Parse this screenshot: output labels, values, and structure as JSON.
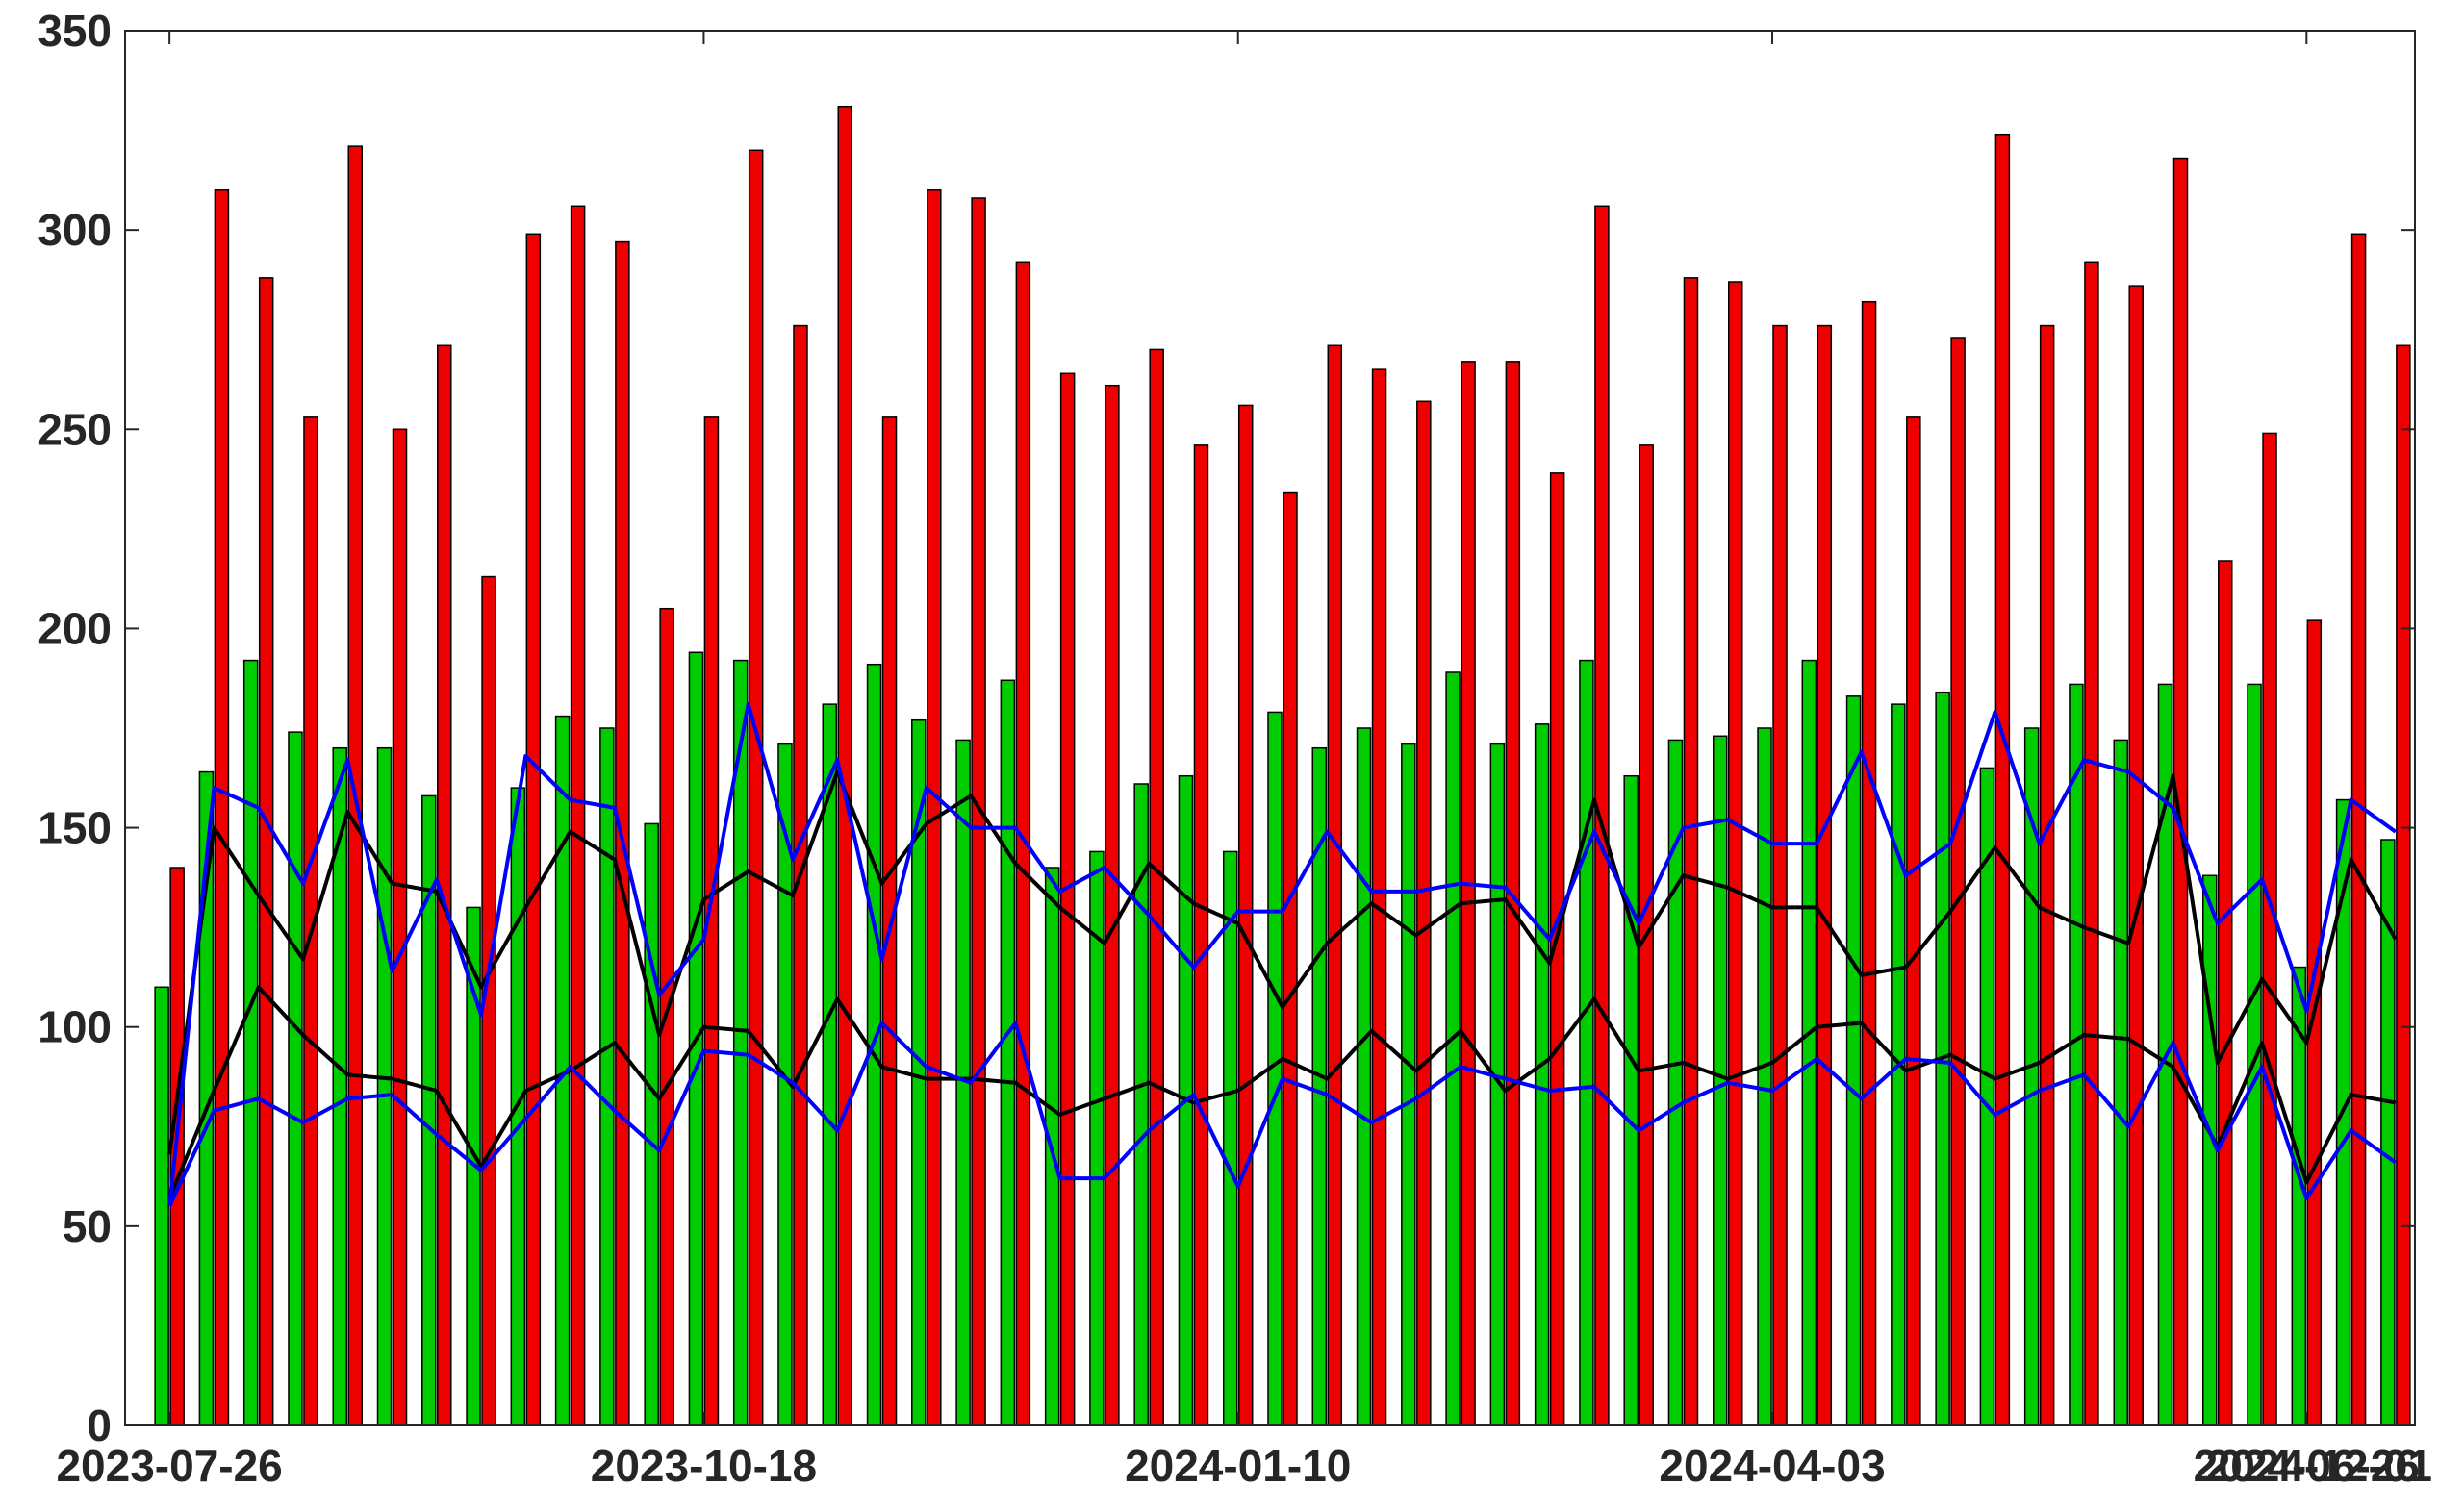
{
  "chart_data": {
    "type": "bar",
    "title": "",
    "xlabel": "",
    "ylabel": "",
    "ylim": [
      0,
      350
    ],
    "yticks": [
      0,
      50,
      100,
      150,
      200,
      250,
      300,
      350
    ],
    "xtick_labels": [
      "2023-07-26",
      "2023-10-18",
      "2024-01-10",
      "2024-04-03",
      "2024-06-26",
      "2024-09-18",
      "2024-12-01"
    ],
    "xtick_index": [
      0,
      12,
      24,
      36,
      48,
      60,
      71
    ],
    "grid": false,
    "colors": {
      "green": "#00cc00",
      "red": "#ee0000",
      "black": "#000000",
      "blue": "#0000ff"
    },
    "bar_series": [
      {
        "color": "green",
        "values": [
          110,
          164,
          192,
          174,
          170,
          170,
          158,
          130,
          160,
          178,
          175,
          151,
          194,
          192,
          171,
          181,
          191,
          177,
          172,
          187,
          140,
          144,
          161,
          163,
          144,
          179,
          170,
          175,
          171,
          189,
          171,
          176,
          192,
          163,
          172,
          173,
          175,
          192,
          183,
          181,
          184,
          165,
          175,
          186,
          172,
          186,
          138,
          186,
          115,
          157,
          147
        ]
      },
      {
        "color": "red",
        "values": [
          140,
          310,
          288,
          253,
          321,
          250,
          271,
          213,
          299,
          306,
          297,
          205,
          253,
          320,
          276,
          331,
          253,
          310,
          308,
          292,
          264,
          261,
          270,
          246,
          256,
          234,
          271,
          265,
          257,
          267,
          267,
          239,
          306,
          246,
          288,
          287,
          276,
          276,
          282,
          253,
          273,
          324,
          276,
          292,
          286,
          318,
          217,
          249,
          202,
          299,
          271
        ]
      }
    ],
    "line_series": [
      {
        "color": "black",
        "values": [
          68,
          150,
          133,
          117,
          154,
          136,
          134,
          110,
          130,
          149,
          142,
          98,
          132,
          139,
          133,
          164,
          136,
          151,
          158,
          141,
          130,
          121,
          141,
          131,
          126,
          105,
          121,
          131,
          123,
          131,
          132,
          116,
          157,
          120,
          138,
          135,
          130,
          130,
          113,
          115,
          129,
          145,
          130,
          125,
          121,
          163,
          91,
          112,
          96,
          142,
          122
        ]
      },
      {
        "color": "black",
        "values": [
          57,
          84,
          110,
          98,
          88,
          87,
          84,
          65,
          84,
          89,
          96,
          82,
          100,
          99,
          85,
          107,
          90,
          87,
          87,
          86,
          78,
          82,
          86,
          81,
          84,
          92,
          87,
          99,
          89,
          99,
          84,
          92,
          107,
          89,
          91,
          87,
          91,
          100,
          101,
          89,
          93,
          87,
          91,
          98,
          97,
          90,
          70,
          96,
          61,
          83,
          81
        ]
      },
      {
        "color": "blue",
        "values": [
          55,
          160,
          155,
          136,
          167,
          114,
          137,
          103,
          168,
          157,
          155,
          108,
          122,
          181,
          142,
          167,
          117,
          160,
          150,
          150,
          134,
          140,
          128,
          115,
          129,
          129,
          149,
          134,
          134,
          136,
          135,
          122,
          149,
          126,
          150,
          152,
          146,
          146,
          169,
          138,
          146,
          179,
          146,
          167,
          164,
          155,
          126,
          137,
          104,
          157,
          149
        ]
      },
      {
        "color": "blue",
        "values": [
          55,
          79,
          82,
          76,
          82,
          83,
          73,
          64,
          77,
          90,
          79,
          69,
          94,
          93,
          86,
          74,
          101,
          90,
          86,
          101,
          62,
          62,
          74,
          83,
          60,
          87,
          83,
          76,
          82,
          90,
          87,
          84,
          85,
          74,
          81,
          86,
          84,
          92,
          82,
          92,
          91,
          78,
          84,
          88,
          75,
          96,
          69,
          90,
          57,
          74,
          66
        ]
      }
    ]
  }
}
